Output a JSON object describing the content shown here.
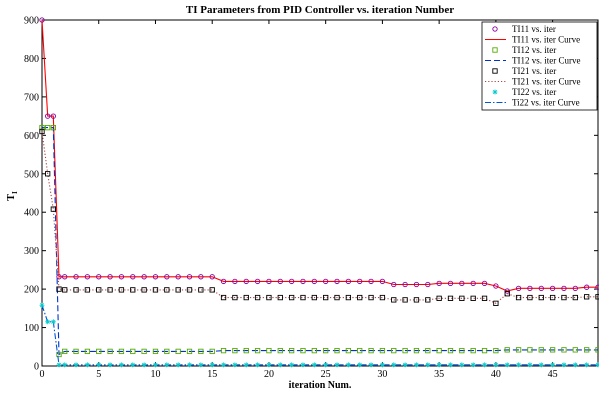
{
  "chart_data": {
    "type": "line",
    "title": "TI  Parameters from PID Controller  vs. iteration Number",
    "xlabel": "iteration Num.",
    "ylabel": "T",
    "ylabel_sub": "I",
    "xlim": [
      0,
      49
    ],
    "ylim": [
      0,
      900
    ],
    "xticks": [
      0,
      5,
      10,
      15,
      20,
      25,
      30,
      35,
      40,
      45
    ],
    "xtick_labels": [
      "0",
      "5",
      "10",
      "15",
      "20",
      "25",
      "30",
      "35",
      "40",
      "45"
    ],
    "yticks": [
      0,
      100,
      200,
      300,
      400,
      500,
      600,
      700,
      800,
      900
    ],
    "ytick_labels": [
      "0",
      "100",
      "200",
      "300",
      "400",
      "500",
      "600",
      "700",
      "800",
      "900"
    ],
    "grid": false,
    "legend_position": "top-right",
    "series": [
      {
        "name": "TI11 vs. iter",
        "curve_name": "TI11 vs. iter Curve",
        "color": "#ff0000",
        "marker_color": "#8b00a0",
        "marker": "circle",
        "line_style": "solid",
        "x": [
          0,
          0.5,
          1,
          1.5,
          2,
          3,
          4,
          5,
          6,
          7,
          8,
          9,
          10,
          11,
          12,
          13,
          14,
          15,
          16,
          17,
          18,
          19,
          20,
          21,
          22,
          23,
          24,
          25,
          26,
          27,
          28,
          29,
          30,
          31,
          32,
          33,
          34,
          35,
          36,
          37,
          38,
          39,
          40,
          41,
          42,
          43,
          44,
          45,
          46,
          47,
          48,
          49
        ],
        "values": [
          900,
          650,
          650,
          232,
          232,
          232,
          232,
          232,
          232,
          232,
          232,
          232,
          232,
          232,
          232,
          232,
          232,
          232,
          220,
          220,
          220,
          220,
          220,
          220,
          220,
          220,
          220,
          220,
          220,
          220,
          220,
          220,
          220,
          212,
          212,
          212,
          212,
          215,
          215,
          215,
          215,
          215,
          208,
          195,
          202,
          202,
          202,
          202,
          202,
          202,
          205,
          205
        ]
      },
      {
        "name": "TI12 vs. iter",
        "curve_name": "TI12 vs. iter Curve",
        "color": "#0033cc",
        "marker_color": "#55aa00",
        "marker": "square",
        "line_style": "dashed",
        "x": [
          0,
          0.5,
          1,
          1.5,
          2,
          3,
          4,
          5,
          6,
          7,
          8,
          9,
          10,
          11,
          12,
          13,
          14,
          15,
          16,
          17,
          18,
          19,
          20,
          21,
          22,
          23,
          24,
          25,
          26,
          27,
          28,
          29,
          30,
          31,
          32,
          33,
          34,
          35,
          36,
          37,
          38,
          39,
          40,
          41,
          42,
          43,
          44,
          45,
          46,
          47,
          48,
          49
        ],
        "values": [
          620,
          620,
          620,
          30,
          38,
          38,
          38,
          38,
          38,
          38,
          38,
          38,
          38,
          38,
          38,
          38,
          38,
          38,
          40,
          40,
          40,
          40,
          40,
          40,
          40,
          40,
          40,
          40,
          40,
          40,
          40,
          40,
          40,
          40,
          40,
          40,
          40,
          40,
          40,
          40,
          40,
          40,
          40,
          42,
          42,
          42,
          42,
          42,
          42,
          42,
          42,
          42
        ]
      },
      {
        "name": "TI21 vs. iter",
        "curve_name": "TI21 vs. iter Curve",
        "color": "#aa4444",
        "marker_color": "#000000",
        "marker": "square",
        "line_style": "dotted",
        "x": [
          0,
          0.5,
          1,
          1.5,
          2,
          3,
          4,
          5,
          6,
          7,
          8,
          9,
          10,
          11,
          12,
          13,
          14,
          15,
          16,
          17,
          18,
          19,
          20,
          21,
          22,
          23,
          24,
          25,
          26,
          27,
          28,
          29,
          30,
          31,
          32,
          33,
          34,
          35,
          36,
          37,
          38,
          39,
          40,
          41,
          42,
          43,
          44,
          45,
          46,
          47,
          48,
          49
        ],
        "values": [
          610,
          500,
          408,
          200,
          198,
          198,
          198,
          198,
          198,
          198,
          198,
          198,
          198,
          198,
          198,
          198,
          198,
          198,
          178,
          178,
          178,
          178,
          178,
          178,
          178,
          178,
          178,
          178,
          178,
          178,
          178,
          178,
          178,
          172,
          172,
          172,
          172,
          176,
          176,
          176,
          176,
          176,
          163,
          188,
          178,
          178,
          178,
          178,
          178,
          178,
          180,
          180
        ]
      },
      {
        "name": "TI22 vs. iter",
        "curve_name": "Ti22 vs. iter Curve",
        "color": "#0055dd",
        "marker_color": "#00cccc",
        "marker": "star",
        "line_style": "dashdot",
        "x": [
          0,
          0.5,
          1,
          1.5,
          2,
          3,
          4,
          5,
          6,
          7,
          8,
          9,
          10,
          11,
          12,
          13,
          14,
          15,
          16,
          17,
          18,
          19,
          20,
          21,
          22,
          23,
          24,
          25,
          26,
          27,
          28,
          29,
          30,
          31,
          32,
          33,
          34,
          35,
          36,
          37,
          38,
          39,
          40,
          41,
          42,
          43,
          44,
          45,
          46,
          47,
          48,
          49
        ],
        "values": [
          158,
          115,
          115,
          3,
          3,
          3,
          3,
          3,
          3,
          3,
          3,
          3,
          3,
          3,
          3,
          3,
          3,
          3,
          3,
          3,
          3,
          3,
          3,
          3,
          3,
          3,
          3,
          3,
          3,
          3,
          3,
          3,
          3,
          3,
          3,
          3,
          3,
          3,
          3,
          3,
          3,
          3,
          3,
          3,
          3,
          3,
          3,
          3,
          3,
          3,
          3,
          3
        ]
      }
    ]
  }
}
